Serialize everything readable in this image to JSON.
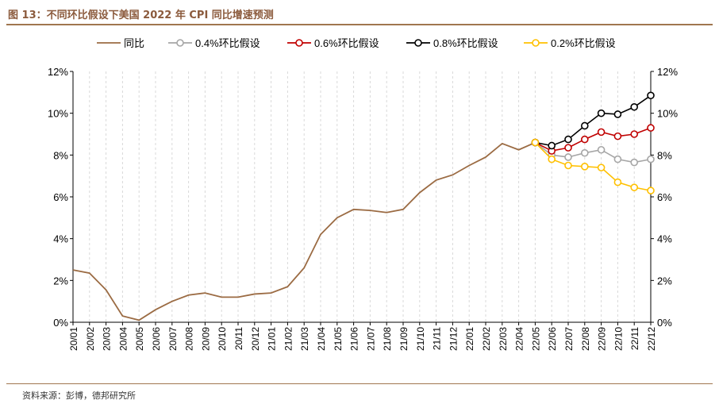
{
  "figure_title": "图 13：不同环比假设下美国 2022 年 CPI 同比增速预测",
  "source_note": "资料来源：彭博，德邦研究所",
  "colors": {
    "actual": "#9B6B43",
    "s04": "#A6A6A6",
    "s06": "#C00000",
    "s08": "#000000",
    "s02": "#FFC000",
    "rule": "#A0764F",
    "grid": "#D9D9D9"
  },
  "chart_data": {
    "type": "line",
    "title": "",
    "xlabel": "",
    "ylabel": "",
    "ylim": [
      0,
      12
    ],
    "y_ticks": [
      "0%",
      "2%",
      "4%",
      "6%",
      "8%",
      "10%",
      "12%"
    ],
    "y_right_ticks": [
      "0%",
      "2%",
      "4%",
      "6%",
      "8%",
      "10%",
      "12%"
    ],
    "legend_position": "top",
    "grid": true,
    "x": [
      "20/01",
      "20/02",
      "20/03",
      "20/04",
      "20/05",
      "20/06",
      "20/07",
      "20/08",
      "20/09",
      "20/10",
      "20/11",
      "20/12",
      "21/01",
      "21/02",
      "21/03",
      "21/04",
      "21/05",
      "21/06",
      "21/07",
      "21/08",
      "21/09",
      "21/10",
      "21/11",
      "21/12",
      "22/01",
      "22/02",
      "22/03",
      "22/04",
      "22/05",
      "22/06",
      "22/07",
      "22/08",
      "22/09",
      "22/10",
      "22/11",
      "22/12"
    ],
    "series": [
      {
        "name": "同比",
        "key": "actual",
        "markers": false,
        "values": [
          2.5,
          2.35,
          1.55,
          0.3,
          0.1,
          0.6,
          1.0,
          1.3,
          1.4,
          1.2,
          1.2,
          1.35,
          1.4,
          1.7,
          2.6,
          4.2,
          5.0,
          5.4,
          5.35,
          5.25,
          5.4,
          6.2,
          6.8,
          7.05,
          7.5,
          7.9,
          8.55,
          8.25,
          8.6,
          null,
          null,
          null,
          null,
          null,
          null,
          null
        ]
      },
      {
        "name": "0.4%环比假设",
        "key": "s04",
        "markers": true,
        "values": [
          null,
          null,
          null,
          null,
          null,
          null,
          null,
          null,
          null,
          null,
          null,
          null,
          null,
          null,
          null,
          null,
          null,
          null,
          null,
          null,
          null,
          null,
          null,
          null,
          null,
          null,
          null,
          null,
          8.6,
          8.0,
          7.9,
          8.1,
          8.25,
          7.8,
          7.65,
          7.8
        ]
      },
      {
        "name": "0.6%环比假设",
        "key": "s06",
        "markers": true,
        "values": [
          null,
          null,
          null,
          null,
          null,
          null,
          null,
          null,
          null,
          null,
          null,
          null,
          null,
          null,
          null,
          null,
          null,
          null,
          null,
          null,
          null,
          null,
          null,
          null,
          null,
          null,
          null,
          null,
          8.6,
          8.2,
          8.35,
          8.75,
          9.1,
          8.9,
          9.0,
          9.3
        ]
      },
      {
        "name": "0.8%环比假设",
        "key": "s08",
        "markers": true,
        "values": [
          null,
          null,
          null,
          null,
          null,
          null,
          null,
          null,
          null,
          null,
          null,
          null,
          null,
          null,
          null,
          null,
          null,
          null,
          null,
          null,
          null,
          null,
          null,
          null,
          null,
          null,
          null,
          null,
          8.6,
          8.45,
          8.75,
          9.4,
          10.0,
          9.95,
          10.3,
          10.85
        ]
      },
      {
        "name": "0.2%环比假设",
        "key": "s02",
        "markers": true,
        "values": [
          null,
          null,
          null,
          null,
          null,
          null,
          null,
          null,
          null,
          null,
          null,
          null,
          null,
          null,
          null,
          null,
          null,
          null,
          null,
          null,
          null,
          null,
          null,
          null,
          null,
          null,
          null,
          null,
          8.6,
          7.8,
          7.5,
          7.45,
          7.4,
          6.7,
          6.45,
          6.3
        ]
      }
    ]
  }
}
